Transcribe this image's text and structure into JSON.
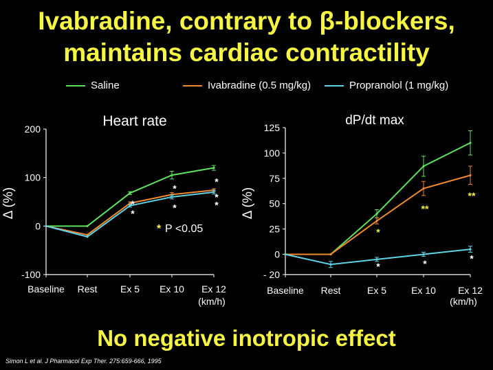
{
  "slide": {
    "title_line1": "Ivabradine, contrary to β-blockers,",
    "title_line2": "maintains cardiac contractility",
    "footer": "No negative inotropic effect",
    "citation": "Simon L et al. J Pharmacol Exp Ther. 275:659-666, 1995"
  },
  "legend": [
    {
      "name": "Saline",
      "color": "#5ee35e"
    },
    {
      "name": "Ivabradine  (0.5 mg/kg)",
      "color": "#f08a2e"
    },
    {
      "name": "Propranolol (1 mg/kg)",
      "color": "#5fd4e6"
    }
  ],
  "chart_data": [
    {
      "type": "line",
      "title": "Heart rate",
      "ylabel": "Δ (%)",
      "xlabel": "(km/h)",
      "categories": [
        "Baseline",
        "Rest",
        "Ex 5",
        "Ex 10",
        "Ex 12"
      ],
      "ylim": [
        -100,
        200
      ],
      "yticks": [
        -100,
        0,
        100,
        200
      ],
      "series": [
        {
          "name": "Saline",
          "color": "#5ee35e",
          "values": [
            0,
            0,
            68,
            105,
            120
          ],
          "errors": [
            0,
            0,
            3,
            8,
            5
          ]
        },
        {
          "name": "Ivabradine  (0.5 mg/kg)",
          "color": "#f08a2e",
          "values": [
            0,
            -18,
            47,
            65,
            74
          ],
          "errors": [
            0,
            0,
            3,
            4,
            3
          ]
        },
        {
          "name": "Propranolol (1 mg/kg)",
          "color": "#5fd4e6",
          "values": [
            0,
            -22,
            42,
            60,
            70
          ],
          "errors": [
            0,
            0,
            3,
            4,
            4
          ]
        }
      ],
      "annotations": [
        {
          "text": "*",
          "x": "Ex 5",
          "y": 50,
          "color": "#ffffff"
        },
        {
          "text": "*",
          "x": "Ex 5",
          "y": 30,
          "color": "#ffffff"
        },
        {
          "text": "*",
          "x": "Ex 10",
          "y": 82,
          "color": "#ffffff"
        },
        {
          "text": "*",
          "x": "Ex 10",
          "y": 42,
          "color": "#ffffff"
        },
        {
          "text": "*",
          "x": "Ex 12",
          "y": 96,
          "color": "#ffffff"
        },
        {
          "text": "*",
          "x": "Ex 12",
          "y": 64,
          "color": "#ffffff"
        },
        {
          "text": "*",
          "x": "Ex 12",
          "y": 48,
          "color": "#ffffff"
        }
      ],
      "pvalue": {
        "star": "*",
        "text": "P <0.05"
      }
    },
    {
      "type": "line",
      "title": "dP/dt max",
      "ylabel": "Δ (%)",
      "xlabel": "(km/h)",
      "categories": [
        "Baseline",
        "Rest",
        "Ex 5",
        "Ex 10",
        "Ex 12"
      ],
      "ylim": [
        -20,
        125
      ],
      "yticks": [
        -20,
        0,
        25,
        50,
        75,
        100,
        125
      ],
      "series": [
        {
          "name": "Saline",
          "color": "#5ee35e",
          "values": [
            0,
            0,
            40,
            87,
            110
          ],
          "errors": [
            0,
            0,
            4,
            10,
            12
          ]
        },
        {
          "name": "Ivabradine  (0.5 mg/kg)",
          "color": "#f08a2e",
          "values": [
            0,
            0,
            33,
            65,
            78
          ],
          "errors": [
            0,
            0,
            3,
            7,
            9
          ]
        },
        {
          "name": "Propranolol (1 mg/kg)",
          "color": "#5fd4e6",
          "values": [
            0,
            -10,
            -5,
            0,
            5
          ],
          "errors": [
            0,
            3,
            2,
            2,
            3
          ]
        }
      ],
      "annotations": [
        {
          "text": "*",
          "x": "Ex 5",
          "y": 24,
          "color": "#f5f542"
        },
        {
          "text": "**",
          "x": "Ex 10",
          "y": 47,
          "color": "#f5f542"
        },
        {
          "text": "**",
          "x": "Ex 12",
          "y": 60,
          "color": "#f5f542"
        },
        {
          "text": "*",
          "x": "Ex 5",
          "y": -10,
          "color": "#ffffff"
        },
        {
          "text": "*",
          "x": "Ex 10",
          "y": -7,
          "color": "#ffffff"
        },
        {
          "text": "*",
          "x": "Ex 12",
          "y": -2,
          "color": "#ffffff"
        }
      ]
    }
  ]
}
